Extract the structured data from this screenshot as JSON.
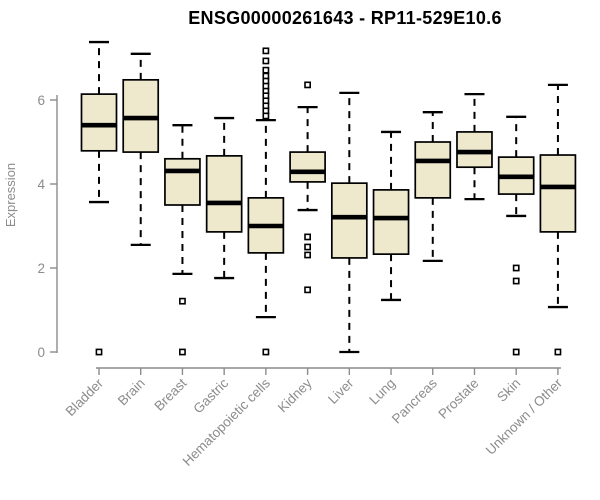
{
  "title": "ENSG00000261643 - RP11-529E10.6",
  "colors": {
    "background": "#ffffff",
    "box_fill": "#EEE8CD",
    "box_stroke": "#000000",
    "median": "#000000",
    "whisker": "#000000",
    "outlier_fill": "#ffffff",
    "outlier_stroke": "#000000",
    "axis": "#8c8c8c",
    "title": "#000000"
  },
  "chart_data": {
    "type": "boxplot",
    "title": "ENSG00000261643 - RP11-529E10.6",
    "xlabel": "",
    "ylabel": "Expression",
    "ylim": [
      0,
      7.5
    ],
    "yticks": [
      0,
      2,
      4,
      6
    ],
    "grid": false,
    "legend": "none",
    "categories": [
      "Bladder",
      "Brain",
      "Breast",
      "Gastric",
      "Hematopoietic cells",
      "Kidney",
      "Liver",
      "Lung",
      "Pancreas",
      "Prostate",
      "Skin",
      "Unknown / Other"
    ],
    "series": [
      {
        "name": "Bladder",
        "whisker_low": 3.57,
        "q1": 4.79,
        "median": 5.4,
        "q3": 6.14,
        "whisker_high": 7.38,
        "outliers": [
          0
        ]
      },
      {
        "name": "Brain",
        "whisker_low": 2.55,
        "q1": 4.76,
        "median": 5.57,
        "q3": 6.48,
        "whisker_high": 7.1,
        "outliers": []
      },
      {
        "name": "Breast",
        "whisker_low": 1.86,
        "q1": 3.5,
        "median": 4.31,
        "q3": 4.6,
        "whisker_high": 5.4,
        "outliers": [
          1.21,
          0
        ]
      },
      {
        "name": "Gastric",
        "whisker_low": 1.76,
        "q1": 2.86,
        "median": 3.55,
        "q3": 4.67,
        "whisker_high": 5.57,
        "outliers": []
      },
      {
        "name": "Hematopoietic cells",
        "whisker_low": 0.83,
        "q1": 2.36,
        "median": 3.0,
        "q3": 3.67,
        "whisker_high": 5.52,
        "outliers": [
          7.17,
          6.93,
          6.71,
          6.57,
          6.45,
          6.33,
          6.21,
          6.1,
          5.98,
          5.86,
          5.74,
          5.62,
          0
        ]
      },
      {
        "name": "Kidney",
        "whisker_low": 3.38,
        "q1": 4.05,
        "median": 4.29,
        "q3": 4.76,
        "whisker_high": 5.83,
        "outliers": [
          6.36,
          2.74,
          2.5,
          2.31,
          1.48
        ]
      },
      {
        "name": "Liver",
        "whisker_low": 0.0,
        "q1": 2.24,
        "median": 3.21,
        "q3": 4.02,
        "whisker_high": 6.17,
        "outliers": []
      },
      {
        "name": "Lung",
        "whisker_low": 1.24,
        "q1": 2.33,
        "median": 3.19,
        "q3": 3.86,
        "whisker_high": 5.24,
        "outliers": []
      },
      {
        "name": "Pancreas",
        "whisker_low": 2.17,
        "q1": 3.67,
        "median": 4.55,
        "q3": 5.0,
        "whisker_high": 5.71,
        "outliers": []
      },
      {
        "name": "Prostate",
        "whisker_low": 3.64,
        "q1": 4.4,
        "median": 4.76,
        "q3": 5.24,
        "whisker_high": 6.14,
        "outliers": []
      },
      {
        "name": "Skin",
        "whisker_low": 3.24,
        "q1": 3.76,
        "median": 4.17,
        "q3": 4.64,
        "whisker_high": 5.6,
        "outliers": [
          2.0,
          1.69,
          0
        ]
      },
      {
        "name": "Unknown / Other",
        "whisker_low": 1.07,
        "q1": 2.86,
        "median": 3.93,
        "q3": 4.69,
        "whisker_high": 6.36,
        "outliers": [
          0
        ]
      }
    ]
  }
}
